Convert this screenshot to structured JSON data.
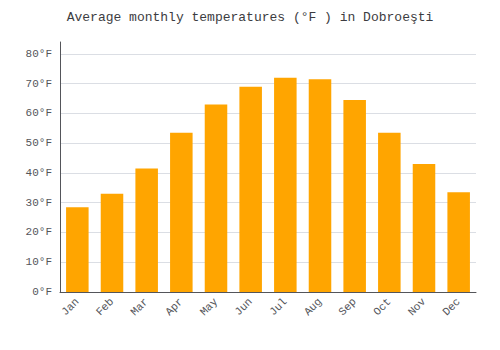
{
  "chart_data": {
    "type": "bar",
    "title": "Average monthly temperatures (°F ) in Dobroeşti",
    "categories": [
      "Jan",
      "Feb",
      "Mar",
      "Apr",
      "May",
      "Jun",
      "Jul",
      "Aug",
      "Sep",
      "Oct",
      "Nov",
      "Dec"
    ],
    "values": [
      28.5,
      33.0,
      41.5,
      53.5,
      63.0,
      69.0,
      72.0,
      71.5,
      64.5,
      53.5,
      43.0,
      33.5
    ],
    "color": "#FFA500",
    "ylim": [
      0,
      84
    ],
    "yticks": [
      {
        "value": 0,
        "label": "0°F"
      },
      {
        "value": 10,
        "label": "10°F"
      },
      {
        "value": 20,
        "label": "20°F"
      },
      {
        "value": 30,
        "label": "30°F"
      },
      {
        "value": 40,
        "label": "40°F"
      },
      {
        "value": 50,
        "label": "50°F"
      },
      {
        "value": 60,
        "label": "60°F"
      },
      {
        "value": 70,
        "label": "70°F"
      },
      {
        "value": 80,
        "label": "80°F"
      }
    ],
    "grid": true
  }
}
